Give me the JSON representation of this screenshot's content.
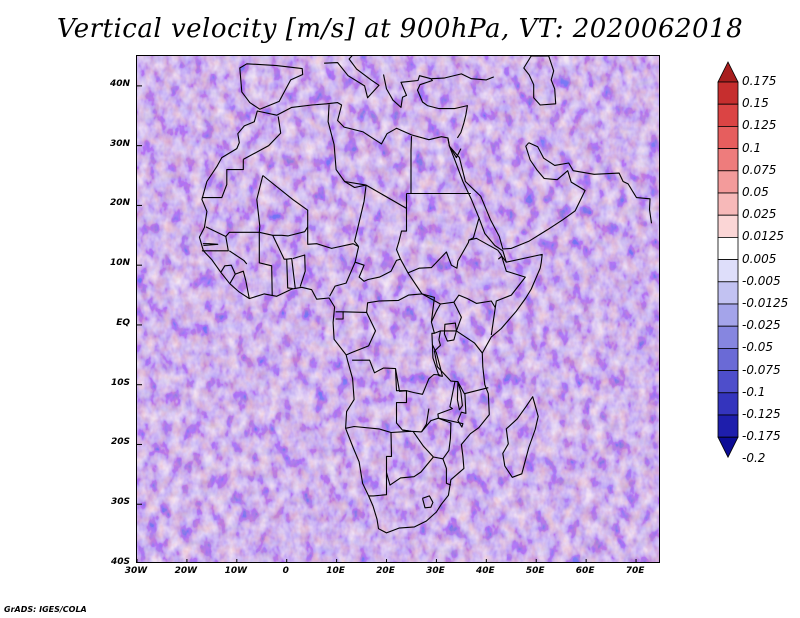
{
  "title": "Vertical velocity [m/s] at 900hPa, VT: 2020062018",
  "footer": "GrADS: IGES/COLA",
  "map": {
    "lon_range": [
      -30,
      75
    ],
    "lat_range": [
      -40,
      45
    ],
    "lat_ticks": [
      {
        "value": 40,
        "label": "40N"
      },
      {
        "value": 30,
        "label": "30N"
      },
      {
        "value": 20,
        "label": "20N"
      },
      {
        "value": 10,
        "label": "10N"
      },
      {
        "value": 0,
        "label": "EQ"
      },
      {
        "value": -10,
        "label": "10S"
      },
      {
        "value": -20,
        "label": "20S"
      },
      {
        "value": -30,
        "label": "30S"
      },
      {
        "value": -40,
        "label": "40S"
      }
    ],
    "lon_ticks": [
      {
        "value": -30,
        "label": "30W"
      },
      {
        "value": -20,
        "label": "20W"
      },
      {
        "value": -10,
        "label": "10W"
      },
      {
        "value": 0,
        "label": "0"
      },
      {
        "value": 10,
        "label": "10E"
      },
      {
        "value": 20,
        "label": "20E"
      },
      {
        "value": 30,
        "label": "30E"
      },
      {
        "value": 40,
        "label": "40E"
      },
      {
        "value": 50,
        "label": "50E"
      },
      {
        "value": 60,
        "label": "60E"
      },
      {
        "value": 70,
        "label": "70E"
      }
    ]
  },
  "colorbar": {
    "colors": [
      "#a81e1e",
      "#c62e2e",
      "#db4444",
      "#e65e5e",
      "#ee7c7c",
      "#f39b9b",
      "#f7b9b9",
      "#fbd6d6",
      "#ffffff",
      "#dedefa",
      "#c2c2f2",
      "#a4a4ea",
      "#8686e0",
      "#6a6ad6",
      "#4e4ecb",
      "#3434bd",
      "#1e1eac",
      "#0c0c96"
    ],
    "labels": [
      "0.175",
      "0.15",
      "0.125",
      "0.1",
      "0.075",
      "0.05",
      "0.025",
      "0.0125",
      "0.005",
      "-0.005",
      "-0.0125",
      "-0.025",
      "-0.05",
      "-0.075",
      "-0.1",
      "-0.125",
      "-0.175",
      "-0.2"
    ]
  }
}
